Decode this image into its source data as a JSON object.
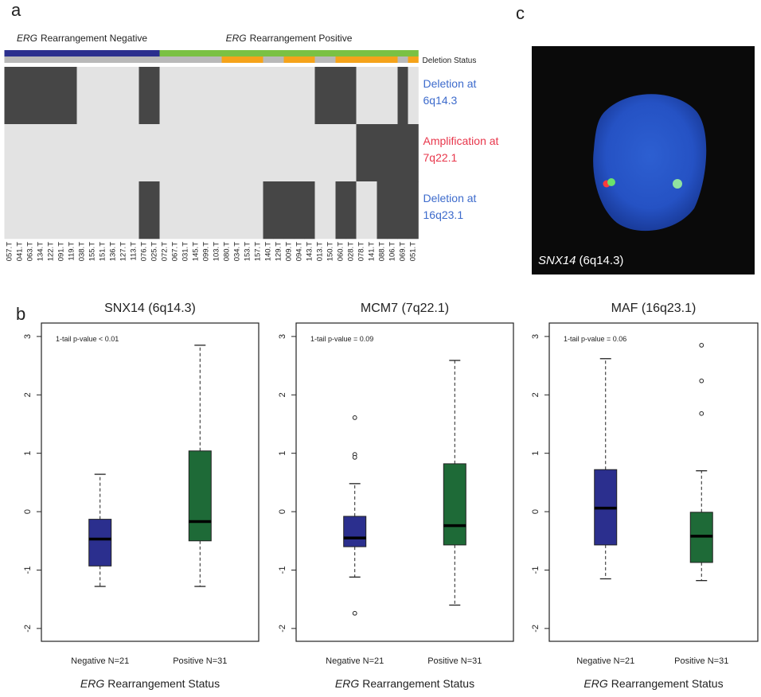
{
  "panel_labels": [
    "a",
    "b",
    "c"
  ],
  "chart_data": [
    {
      "type": "heatmap",
      "categories": [
        "057.T",
        "041.T",
        "063.T",
        "134.T",
        "122.T",
        "091.T",
        "119.T",
        "038.T",
        "155.T",
        "151.T",
        "136.T",
        "127.T",
        "113.T",
        "076.T",
        "025.T",
        "072.T",
        "067.T",
        "031.T",
        "145.T",
        "099.T",
        "103.T",
        "080.T",
        "034.T",
        "153.T",
        "157.T",
        "140.T",
        "129.T",
        "009.T",
        "094.T",
        "143.T",
        "013.T",
        "150.T",
        "060.T",
        "028.T",
        "078.T",
        "141.T",
        "088.T",
        "106.T",
        "069.T",
        "051.T"
      ],
      "groups": [
        {
          "label_italic": "ERG",
          "label": "Rearrangement Negative",
          "color": "#2b2f8e"
        },
        {
          "label_italic": "ERG",
          "label": "Rearrangement Positive",
          "color": "#7ac143"
        }
      ],
      "sample_group": [
        0,
        0,
        0,
        0,
        0,
        0,
        0,
        0,
        0,
        0,
        0,
        0,
        0,
        0,
        0,
        1,
        1,
        1,
        1,
        1,
        1,
        1,
        1,
        1,
        1,
        1,
        1,
        1,
        1,
        1,
        1,
        1,
        1,
        1,
        1,
        1,
        1,
        1,
        1,
        1
      ],
      "deletion_status": {
        "name": "Deletion Status",
        "colors": [
          "#b9b9b9",
          "#f5a31a"
        ],
        "values": [
          0,
          0,
          0,
          0,
          0,
          0,
          0,
          0,
          0,
          0,
          0,
          0,
          0,
          0,
          0,
          0,
          0,
          0,
          0,
          0,
          0,
          1,
          1,
          1,
          1,
          0,
          0,
          1,
          1,
          1,
          0,
          0,
          1,
          1,
          1,
          1,
          1,
          1,
          0,
          1
        ]
      },
      "colors": [
        "#e3e3e3",
        "#464646"
      ],
      "rows": [
        {
          "label": [
            "Deletion at",
            "6q14.3"
          ],
          "color": "#3d6bcc",
          "values": [
            1,
            1,
            1,
            1,
            1,
            1,
            1,
            0,
            0,
            0,
            0,
            0,
            0,
            1,
            1,
            0,
            0,
            0,
            0,
            0,
            0,
            0,
            0,
            0,
            0,
            0,
            0,
            0,
            0,
            0,
            1,
            1,
            1,
            1,
            0,
            0,
            0,
            0,
            1,
            0
          ]
        },
        {
          "label": [
            "Amplification at",
            "7q22.1"
          ],
          "color": "#e8364b",
          "values": [
            0,
            0,
            0,
            0,
            0,
            0,
            0,
            0,
            0,
            0,
            0,
            0,
            0,
            0,
            0,
            0,
            0,
            0,
            0,
            0,
            0,
            0,
            0,
            0,
            0,
            0,
            0,
            0,
            0,
            0,
            0,
            0,
            0,
            0,
            1,
            1,
            1,
            1,
            1,
            1
          ]
        },
        {
          "label": [
            "Deletion at",
            "16q23.1"
          ],
          "color": "#3d6bcc",
          "values": [
            0,
            0,
            0,
            0,
            0,
            0,
            0,
            0,
            0,
            0,
            0,
            0,
            0,
            1,
            1,
            0,
            0,
            0,
            0,
            0,
            0,
            0,
            0,
            0,
            0,
            1,
            1,
            1,
            1,
            1,
            0,
            0,
            1,
            1,
            0,
            0,
            1,
            1,
            1,
            1
          ]
        }
      ]
    },
    {
      "type": "box",
      "title": "SNX14 (6q14.3)",
      "annotation": "1-tail p-value < 0.01",
      "categories": [
        "Negative N=21",
        "Positive N=31"
      ],
      "xlabel_italic": "ERG",
      "xlabel": "Rearrangement Status",
      "ylim": [
        -2.22,
        3.23
      ],
      "yticks": [
        -2,
        -1,
        0,
        1,
        2,
        3
      ],
      "boxes": [
        {
          "color": "#2b2f8e",
          "whislo": -1.28,
          "q1": -0.93,
          "med": -0.47,
          "q3": -0.13,
          "whishi": 0.64,
          "fliers": []
        },
        {
          "color": "#1e6a37",
          "whislo": -1.28,
          "q1": -0.5,
          "med": -0.17,
          "q3": 1.04,
          "whishi": 2.85,
          "fliers": []
        }
      ]
    },
    {
      "type": "box",
      "title": "MCM7 (7q22.1)",
      "annotation": "1-tail p-value = 0.09",
      "categories": [
        "Negative N=21",
        "Positive N=31"
      ],
      "xlabel_italic": "ERG",
      "xlabel": "Rearrangement Status",
      "ylim": [
        -2.22,
        3.23
      ],
      "yticks": [
        -2,
        -1,
        0,
        1,
        2,
        3
      ],
      "boxes": [
        {
          "color": "#2b2f8e",
          "whislo": -1.12,
          "q1": -0.6,
          "med": -0.45,
          "q3": -0.08,
          "whishi": 0.48,
          "fliers": [
            1.61,
            0.98,
            0.93,
            -1.74
          ]
        },
        {
          "color": "#1e6a37",
          "whislo": -1.6,
          "q1": -0.57,
          "med": -0.24,
          "q3": 0.82,
          "whishi": 2.59,
          "fliers": []
        }
      ]
    },
    {
      "type": "box",
      "title": "MAF (16q23.1)",
      "annotation": "1-tail p-value = 0.06",
      "categories": [
        "Negative N=21",
        "Positive N=31"
      ],
      "xlabel_italic": "ERG",
      "xlabel": "Rearrangement Status",
      "ylim": [
        -2.22,
        3.23
      ],
      "yticks": [
        -2,
        -1,
        0,
        1,
        2,
        3
      ],
      "boxes": [
        {
          "color": "#2b2f8e",
          "whislo": -1.15,
          "q1": -0.57,
          "med": 0.06,
          "q3": 0.72,
          "whishi": 2.62,
          "fliers": []
        },
        {
          "color": "#1e6a37",
          "whislo": -1.18,
          "q1": -0.87,
          "med": -0.42,
          "q3": -0.01,
          "whishi": 0.7,
          "fliers": [
            2.85,
            2.24,
            1.68
          ]
        }
      ]
    }
  ],
  "image": {
    "caption_italic": "SNX14",
    "caption": "(6q14.3)"
  }
}
